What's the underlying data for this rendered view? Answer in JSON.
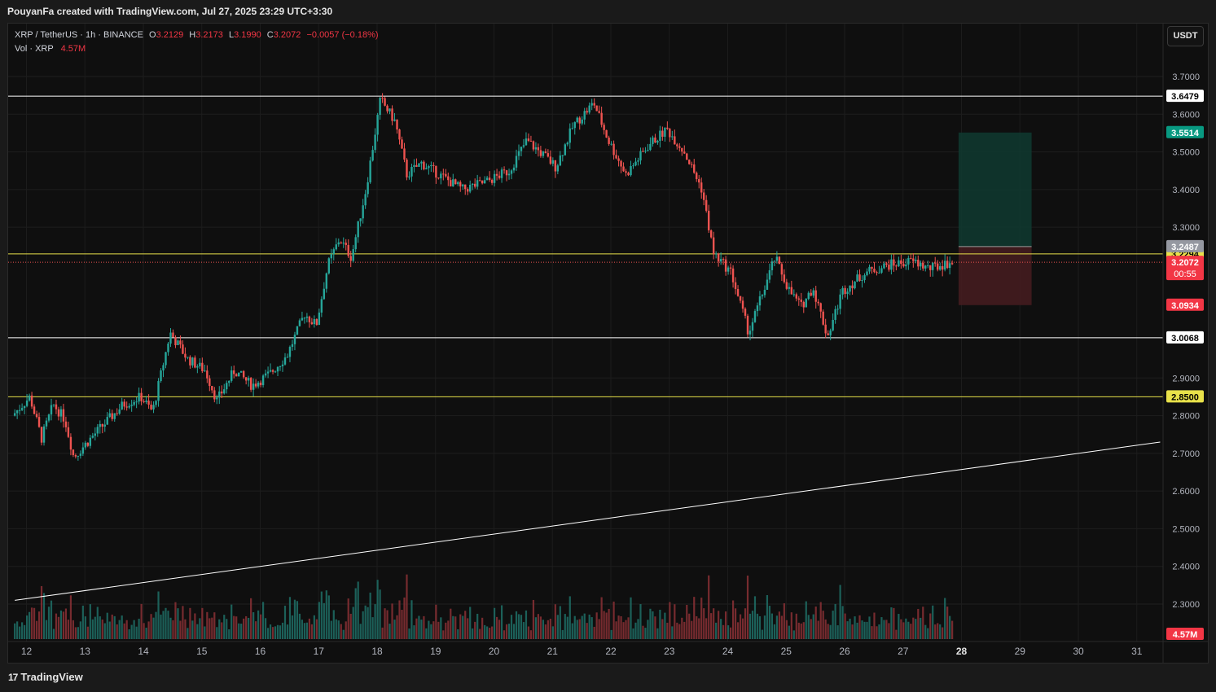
{
  "header": {
    "credit": "PouyanFa created with TradingView.com, Jul 27, 2025 23:29 UTC+3:30"
  },
  "legend": {
    "symbol": "XRP / TetherUS · 1h · BINANCE",
    "o_label": "O",
    "o_value": "3.2129",
    "h_label": "H",
    "h_value": "3.2173",
    "l_label": "L",
    "l_value": "3.1990",
    "c_label": "C",
    "c_value": "3.2072",
    "change": "−0.0057 (−0.18%)",
    "vol_label": "Vol · XRP",
    "vol_value": "4.57M"
  },
  "currency_button": "USDT",
  "footer": {
    "brand": "TradingView",
    "brand_mark": "17"
  },
  "colors": {
    "up": "#26a69a",
    "down": "#ef5350",
    "background": "#0f0f0f",
    "yellow_level": "#e8e14a",
    "white_level": "#ffffff",
    "target_zone": "#0f3a30",
    "stop_zone": "#4a1d20"
  },
  "chart_data": {
    "type": "candlestick",
    "timeframe": "1h",
    "ylim": [
      2.24,
      3.77
    ],
    "y_ticks": [
      "3.7000",
      "3.6000",
      "3.5000",
      "3.4000",
      "3.3000",
      "2.9000",
      "2.8000",
      "2.7000",
      "2.6000",
      "2.5000",
      "2.4000",
      "2.3000"
    ],
    "x_ticks": [
      "12",
      "13",
      "14",
      "15",
      "16",
      "17",
      "18",
      "19",
      "20",
      "21",
      "22",
      "23",
      "24",
      "25",
      "26",
      "27",
      "28",
      "29",
      "30",
      "31"
    ],
    "price_path": [
      {
        "day": 11.8,
        "price": 2.8
      },
      {
        "day": 12.1,
        "price": 2.85
      },
      {
        "day": 12.3,
        "price": 2.74
      },
      {
        "day": 12.5,
        "price": 2.83
      },
      {
        "day": 12.7,
        "price": 2.79
      },
      {
        "day": 12.85,
        "price": 2.69
      },
      {
        "day": 13.2,
        "price": 2.75
      },
      {
        "day": 13.7,
        "price": 2.83
      },
      {
        "day": 14.0,
        "price": 2.85
      },
      {
        "day": 14.2,
        "price": 2.81
      },
      {
        "day": 14.5,
        "price": 3.02
      },
      {
        "day": 14.8,
        "price": 2.95
      },
      {
        "day": 15.1,
        "price": 2.92
      },
      {
        "day": 15.3,
        "price": 2.84
      },
      {
        "day": 15.6,
        "price": 2.92
      },
      {
        "day": 15.9,
        "price": 2.88
      },
      {
        "day": 16.2,
        "price": 2.91
      },
      {
        "day": 16.5,
        "price": 2.96
      },
      {
        "day": 16.8,
        "price": 3.07
      },
      {
        "day": 17.0,
        "price": 3.04
      },
      {
        "day": 17.2,
        "price": 3.2
      },
      {
        "day": 17.4,
        "price": 3.27
      },
      {
        "day": 17.6,
        "price": 3.22
      },
      {
        "day": 17.85,
        "price": 3.4
      },
      {
        "day": 18.1,
        "price": 3.64
      },
      {
        "day": 18.35,
        "price": 3.58
      },
      {
        "day": 18.55,
        "price": 3.44
      },
      {
        "day": 18.8,
        "price": 3.47
      },
      {
        "day": 19.2,
        "price": 3.43
      },
      {
        "day": 19.5,
        "price": 3.4
      },
      {
        "day": 19.9,
        "price": 3.42
      },
      {
        "day": 20.3,
        "price": 3.45
      },
      {
        "day": 20.6,
        "price": 3.53
      },
      {
        "day": 20.9,
        "price": 3.49
      },
      {
        "day": 21.1,
        "price": 3.46
      },
      {
        "day": 21.4,
        "price": 3.57
      },
      {
        "day": 21.75,
        "price": 3.63
      },
      {
        "day": 22.0,
        "price": 3.53
      },
      {
        "day": 22.3,
        "price": 3.44
      },
      {
        "day": 22.7,
        "price": 3.52
      },
      {
        "day": 23.0,
        "price": 3.56
      },
      {
        "day": 23.3,
        "price": 3.5
      },
      {
        "day": 23.6,
        "price": 3.4
      },
      {
        "day": 23.8,
        "price": 3.23
      },
      {
        "day": 24.1,
        "price": 3.18
      },
      {
        "day": 24.4,
        "price": 3.02
      },
      {
        "day": 24.65,
        "price": 3.13
      },
      {
        "day": 24.85,
        "price": 3.22
      },
      {
        "day": 25.1,
        "price": 3.13
      },
      {
        "day": 25.3,
        "price": 3.09
      },
      {
        "day": 25.5,
        "price": 3.14
      },
      {
        "day": 25.75,
        "price": 3.01
      },
      {
        "day": 26.0,
        "price": 3.13
      },
      {
        "day": 26.4,
        "price": 3.18
      },
      {
        "day": 26.8,
        "price": 3.2
      },
      {
        "day": 27.2,
        "price": 3.21
      },
      {
        "day": 27.5,
        "price": 3.19
      },
      {
        "day": 27.85,
        "price": 3.207
      }
    ],
    "horizontal_levels": [
      {
        "price": 3.6479,
        "label": "3.6479",
        "color": "#ffffff"
      },
      {
        "price": 3.2294,
        "label": "3.2294",
        "color": "#e8e14a"
      },
      {
        "price": 3.0068,
        "label": "3.0068",
        "color": "#ffffff"
      },
      {
        "price": 2.85,
        "label": "2.8500",
        "color": "#e8e14a"
      }
    ],
    "trendline": {
      "start": {
        "day": 11.8,
        "price": 2.31
      },
      "end": {
        "day": 31.4,
        "price": 2.73
      }
    },
    "position": {
      "type": "long",
      "start_day": 27.95,
      "end_day": 29.2,
      "entry": 3.2487,
      "entry_label": "3.2487",
      "target": 3.5514,
      "target_label": "3.5514",
      "stop": 3.0934,
      "stop_label": "3.0934"
    },
    "current_price": {
      "price": 3.2072,
      "label": "3.2072",
      "countdown": "00:55"
    },
    "volume": {
      "label": "4.57M"
    }
  }
}
